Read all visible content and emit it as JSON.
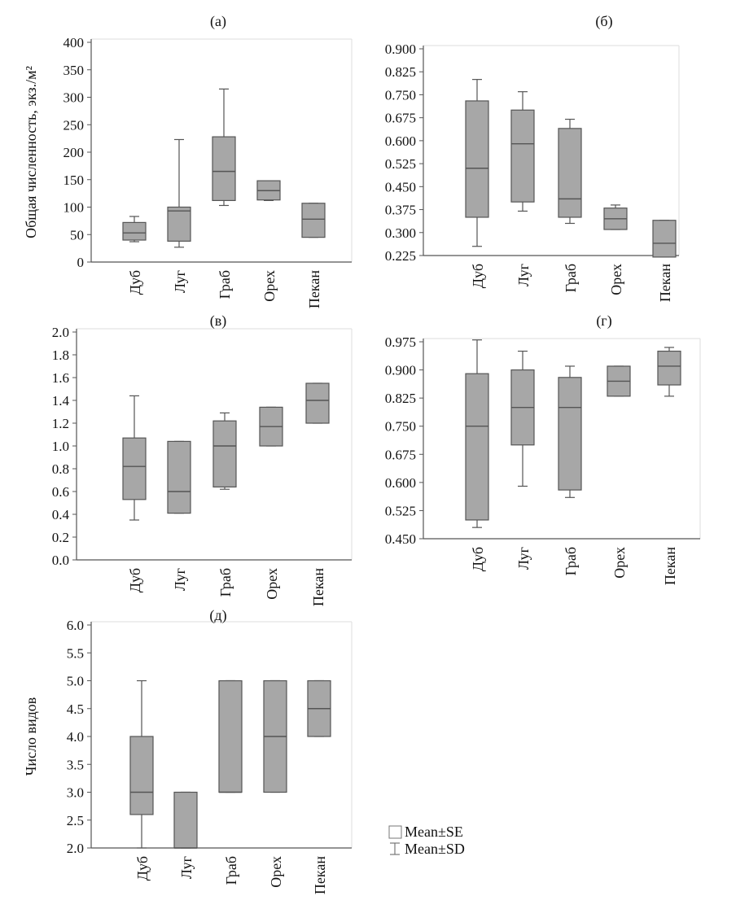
{
  "colors": {
    "box_fill": "#a7a7a7",
    "stroke": "#555555",
    "frame": "#dddddd",
    "text": "#111111"
  },
  "legend": {
    "se_label": "Mean±SE",
    "sd_label": "Mean±SD"
  },
  "chart_data": [
    {
      "id": "a",
      "type": "boxplot",
      "title": "(а)",
      "ylabel": "Общая численность, экз./м²",
      "categories": [
        "Дуб",
        "Луг",
        "Граб",
        "Орех",
        "Пекан"
      ],
      "ylim": [
        0,
        400
      ],
      "yticks": [
        "0",
        "50",
        "100",
        "150",
        "200",
        "250",
        "300",
        "350",
        "400"
      ],
      "series": [
        {
          "name": "Дуб",
          "sd_low": 37,
          "sd_high": 83,
          "se_low": 40,
          "se_high": 72,
          "mean": 53
        },
        {
          "name": "Луг",
          "sd_low": 27,
          "sd_high": 223,
          "se_low": 38,
          "se_high": 100,
          "mean": 93
        },
        {
          "name": "Граб",
          "sd_low": 103,
          "sd_high": 315,
          "se_low": 112,
          "se_high": 228,
          "mean": 165
        },
        {
          "name": "Орех",
          "sd_low": 112,
          "sd_high": 148,
          "se_low": 113,
          "se_high": 148,
          "mean": 130
        },
        {
          "name": "Пекан",
          "sd_low": 45,
          "sd_high": 107,
          "se_low": 45,
          "se_high": 107,
          "mean": 78
        }
      ]
    },
    {
      "id": "b",
      "type": "boxplot",
      "title": "(б)",
      "ylabel": "",
      "categories": [
        "Дуб",
        "Луг",
        "Граб",
        "Орех",
        "Пекан"
      ],
      "ylim": [
        0.225,
        0.9
      ],
      "yticks": [
        "0.225",
        "0.300",
        "0.375",
        "0.450",
        "0.525",
        "0.600",
        "0.675",
        "0.750",
        "0.825",
        "0.900"
      ],
      "series": [
        {
          "name": "Дуб",
          "sd_low": 0.255,
          "sd_high": 0.8,
          "se_low": 0.35,
          "se_high": 0.73,
          "mean": 0.51
        },
        {
          "name": "Луг",
          "sd_low": 0.37,
          "sd_high": 0.76,
          "se_low": 0.4,
          "se_high": 0.7,
          "mean": 0.59
        },
        {
          "name": "Граб",
          "sd_low": 0.33,
          "sd_high": 0.67,
          "se_low": 0.35,
          "se_high": 0.64,
          "mean": 0.41
        },
        {
          "name": "Орех",
          "sd_low": 0.31,
          "sd_high": 0.39,
          "se_low": 0.31,
          "se_high": 0.38,
          "mean": 0.345
        },
        {
          "name": "Пекан",
          "sd_low": 0.22,
          "sd_high": 0.34,
          "se_low": 0.22,
          "se_high": 0.34,
          "mean": 0.265
        }
      ]
    },
    {
      "id": "v",
      "type": "boxplot",
      "title": "(в)",
      "ylabel": "",
      "categories": [
        "Дуб",
        "Луг",
        "Граб",
        "Орех",
        "Пекан"
      ],
      "ylim": [
        0,
        2
      ],
      "yticks": [
        "0.0",
        "0.2",
        "0.4",
        "0.6",
        "0.8",
        "1.0",
        "1.2",
        "1.4",
        "1.6",
        "1.8",
        "2.0"
      ],
      "series": [
        {
          "name": "Дуб",
          "sd_low": 0.35,
          "sd_high": 1.44,
          "se_low": 0.53,
          "se_high": 1.07,
          "mean": 0.82
        },
        {
          "name": "Луг",
          "sd_low": 0.41,
          "sd_high": 1.04,
          "se_low": 0.41,
          "se_high": 1.04,
          "mean": 0.6
        },
        {
          "name": "Граб",
          "sd_low": 0.62,
          "sd_high": 1.29,
          "se_low": 0.64,
          "se_high": 1.22,
          "mean": 1.0
        },
        {
          "name": "Орех",
          "sd_low": 1.0,
          "sd_high": 1.34,
          "se_low": 1.0,
          "se_high": 1.34,
          "mean": 1.17
        },
        {
          "name": "Пекан",
          "sd_low": 1.2,
          "sd_high": 1.55,
          "se_low": 1.2,
          "se_high": 1.55,
          "mean": 1.4
        }
      ]
    },
    {
      "id": "g",
      "type": "boxplot",
      "title": "(г)",
      "ylabel": "",
      "categories": [
        "Дуб",
        "Луг",
        "Граб",
        "Орех",
        "Пекан"
      ],
      "ylim": [
        0.45,
        0.975
      ],
      "yticks": [
        "0.450",
        "0.525",
        "0.600",
        "0.675",
        "0.750",
        "0.825",
        "0.900",
        "0.975"
      ],
      "series": [
        {
          "name": "Дуб",
          "sd_low": 0.48,
          "sd_high": 0.98,
          "se_low": 0.5,
          "se_high": 0.89,
          "mean": 0.75
        },
        {
          "name": "Луг",
          "sd_low": 0.59,
          "sd_high": 0.95,
          "se_low": 0.7,
          "se_high": 0.9,
          "mean": 0.8
        },
        {
          "name": "Граб",
          "sd_low": 0.56,
          "sd_high": 0.91,
          "se_low": 0.58,
          "se_high": 0.88,
          "mean": 0.8
        },
        {
          "name": "Орех",
          "sd_low": 0.83,
          "sd_high": 0.91,
          "se_low": 0.83,
          "se_high": 0.91,
          "mean": 0.87
        },
        {
          "name": "Пекан",
          "sd_low": 0.83,
          "sd_high": 0.96,
          "se_low": 0.86,
          "se_high": 0.95,
          "mean": 0.91
        }
      ]
    },
    {
      "id": "d",
      "type": "boxplot",
      "title": "(д)",
      "ylabel": "Число видов",
      "categories": [
        "Дуб",
        "Луг",
        "Граб",
        "Орех",
        "Пекан"
      ],
      "ylim": [
        2,
        6
      ],
      "yticks": [
        "2.0",
        "2.5",
        "3.0",
        "3.5",
        "4.0",
        "4.5",
        "5.0",
        "5.5",
        "6.0"
      ],
      "series": [
        {
          "name": "Дуб",
          "sd_low": 2.0,
          "sd_high": 5.0,
          "se_low": 2.6,
          "se_high": 4.0,
          "mean": 3.0
        },
        {
          "name": "Луг",
          "sd_low": 2.0,
          "sd_high": 3.0,
          "se_low": 2.0,
          "se_high": 3.0,
          "mean": 2.0
        },
        {
          "name": "Граб",
          "sd_low": 3.0,
          "sd_high": 5.0,
          "se_low": 3.0,
          "se_high": 5.0,
          "mean": 3.0
        },
        {
          "name": "Орех",
          "sd_low": 3.0,
          "sd_high": 5.0,
          "se_low": 3.0,
          "se_high": 5.0,
          "mean": 4.0
        },
        {
          "name": "Пекан",
          "sd_low": 4.0,
          "sd_high": 5.0,
          "se_low": 4.0,
          "se_high": 5.0,
          "mean": 4.5
        }
      ]
    }
  ]
}
